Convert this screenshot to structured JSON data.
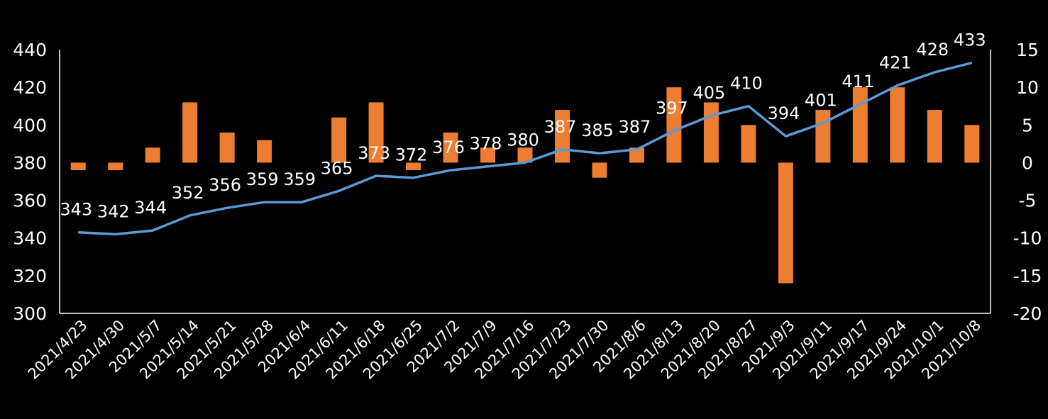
{
  "chart_data": {
    "type": "bar+line",
    "title": "",
    "categories": [
      "2021/4/23",
      "2021/4/30",
      "2021/5/7",
      "2021/5/14",
      "2021/5/21",
      "2021/5/28",
      "2021/6/4",
      "2021/6/11",
      "2021/6/18",
      "2021/6/25",
      "2021/7/2",
      "2021/7/9",
      "2021/7/16",
      "2021/7/23",
      "2021/7/30",
      "2021/8/6",
      "2021/8/13",
      "2021/8/20",
      "2021/8/27",
      "2021/9/3",
      "2021/9/11",
      "2021/9/17",
      "2021/9/24",
      "2021/10/1",
      "2021/10/8"
    ],
    "series": [
      {
        "type": "line",
        "axis": "left",
        "color": "#5B9BD5",
        "values": [
          343,
          342,
          344,
          352,
          356,
          359,
          359,
          365,
          373,
          372,
          376,
          378,
          380,
          387,
          385,
          387,
          397,
          405,
          410,
          394,
          401,
          411,
          421,
          428,
          433
        ],
        "labels": [
          "343",
          "342",
          "344",
          "352",
          "356",
          "359",
          "359",
          "365",
          "373",
          "372",
          "376",
          "378",
          "380",
          "387",
          "385",
          "387",
          "397",
          "405",
          "410",
          "394",
          "401",
          "411",
          "421",
          "428",
          "433"
        ]
      },
      {
        "type": "bar",
        "axis": "right",
        "color": "#ED7D31",
        "values": [
          -1,
          -1,
          2,
          8,
          4,
          3,
          0,
          6,
          8,
          -1,
          4,
          2,
          2,
          7,
          -2,
          2,
          10,
          8,
          5,
          -16,
          7,
          10,
          10,
          7,
          5
        ]
      }
    ],
    "y_left": {
      "min": 300,
      "max": 440,
      "step": 20,
      "ticks": [
        "300",
        "320",
        "340",
        "360",
        "380",
        "400",
        "420",
        "440"
      ]
    },
    "y_right": {
      "min": -20,
      "max": 15,
      "step": 5,
      "ticks": [
        "-20",
        "-15",
        "-10",
        "-5",
        "0",
        "5",
        "10",
        "15"
      ]
    },
    "grid": false,
    "legend": "none"
  }
}
